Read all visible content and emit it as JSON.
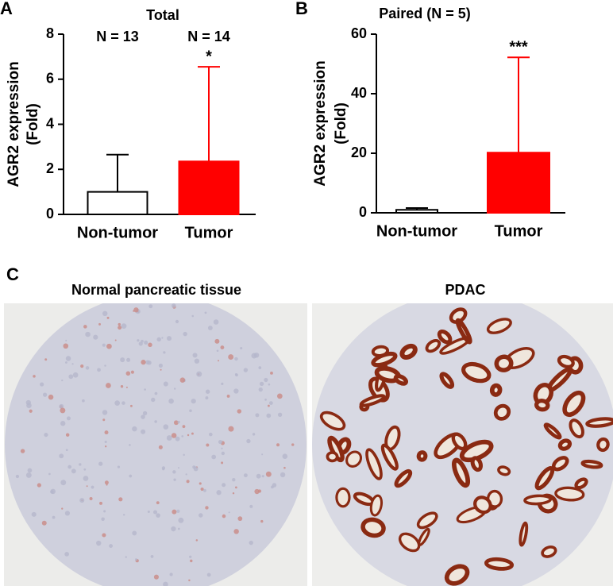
{
  "chart_data": [
    {
      "type": "bar",
      "panel": "A",
      "title": "Total",
      "y_label": [
        "AGR2 expression",
        "(Fold)"
      ],
      "categories": [
        "Non-tumor",
        "Tumor"
      ],
      "values": [
        1.0,
        2.35
      ],
      "errors": [
        1.65,
        4.2
      ],
      "colors": [
        "#ffffff",
        "#ff0000"
      ],
      "n_labels": [
        "N = 13",
        "N = 14"
      ],
      "significance": [
        null,
        "*"
      ],
      "ylim": [
        0,
        8
      ],
      "yticks": [
        0,
        2,
        4,
        6,
        8
      ]
    },
    {
      "type": "bar",
      "panel": "B",
      "title": "Paired (N = 5)",
      "y_label": [
        "AGR2 expression",
        "(Fold)"
      ],
      "categories": [
        "Non-tumor",
        "Tumor"
      ],
      "values": [
        1.0,
        20.2
      ],
      "errors": [
        0.6,
        32
      ],
      "colors": [
        "#ffffff",
        "#ff0000"
      ],
      "significance": [
        null,
        "***"
      ],
      "ylim": [
        0,
        60
      ],
      "yticks": [
        0,
        20,
        40,
        60
      ]
    }
  ],
  "panel_c": {
    "label": "C",
    "images": [
      {
        "title": "Normal pancreatic tissue"
      },
      {
        "title": "PDAC"
      }
    ]
  }
}
